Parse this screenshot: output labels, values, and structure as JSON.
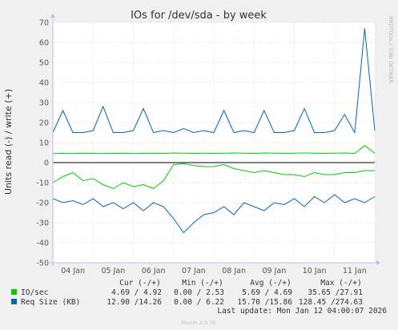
{
  "chart_data": {
    "type": "line",
    "title": "IOs for /dev/sda - by week",
    "ylabel": "Units read (-) / write (+)",
    "ylim": [
      -50,
      70
    ],
    "yticks": [
      70,
      60,
      50,
      40,
      30,
      20,
      10,
      0,
      -10,
      -20,
      -30,
      -40,
      -50
    ],
    "xticks": [
      "04 Jan",
      "05 Jan",
      "06 Jan",
      "07 Jan",
      "08 Jan",
      "09 Jan",
      "10 Jan",
      "11 Jan"
    ],
    "grid": true,
    "x_range_days": [
      0,
      8
    ],
    "series": [
      {
        "name": "IO/sec",
        "color": "#00cc00",
        "x": [
          0,
          0.25,
          0.5,
          0.75,
          1,
          1.25,
          1.5,
          1.75,
          2,
          2.25,
          2.5,
          2.75,
          3,
          3.25,
          3.5,
          3.75,
          4,
          4.25,
          4.5,
          4.75,
          5,
          5.25,
          5.5,
          5.75,
          6,
          6.25,
          6.5,
          6.75,
          7,
          7.25,
          7.5,
          7.75,
          8
        ],
        "write": [
          4.5,
          4.6,
          4.5,
          4.7,
          4.6,
          4.5,
          4.6,
          4.7,
          4.5,
          4.6,
          4.7,
          4.6,
          4.8,
          4.7,
          4.6,
          4.7,
          4.6,
          4.7,
          4.8,
          4.7,
          4.6,
          4.8,
          4.7,
          4.6,
          4.7,
          4.8,
          4.7,
          4.6,
          4.7,
          4.8,
          4.6,
          8.5,
          4.7
        ],
        "read": [
          10,
          7,
          5,
          9,
          8,
          11,
          13,
          10,
          12,
          11,
          13,
          9,
          1,
          0.5,
          1.5,
          2,
          2,
          1,
          3,
          4,
          5,
          4,
          5,
          6,
          6,
          7,
          5,
          6,
          6,
          5,
          5,
          4,
          4
        ]
      },
      {
        "name": "Req Size (KB)",
        "color": "#0066b3",
        "x": [
          0,
          0.25,
          0.5,
          0.75,
          1,
          1.25,
          1.5,
          1.75,
          2,
          2.25,
          2.5,
          2.75,
          3,
          3.25,
          3.5,
          3.75,
          4,
          4.25,
          4.5,
          4.75,
          5,
          5.25,
          5.5,
          5.75,
          6,
          6.25,
          6.5,
          6.75,
          7,
          7.25,
          7.5,
          7.75,
          8
        ],
        "write": [
          15,
          26,
          15,
          15,
          16,
          28,
          15,
          15,
          16,
          27,
          15,
          16,
          15,
          17,
          15,
          16,
          15,
          26,
          15,
          16,
          15,
          26,
          15,
          15,
          16,
          27,
          15,
          15,
          16,
          24,
          15,
          67,
          16
        ],
        "read": [
          18,
          20,
          19,
          21,
          18,
          22,
          20,
          23,
          20,
          24,
          20,
          22,
          28,
          35,
          30,
          26,
          25,
          22,
          26,
          20,
          22,
          24,
          20,
          21,
          18,
          22,
          17,
          20,
          16,
          20,
          18,
          20,
          17
        ]
      }
    ],
    "legend": {
      "headers": [
        "Cur (-/+)",
        "Min (-/+)",
        "Avg (-/+)",
        "Max (-/+)"
      ],
      "rows": [
        {
          "name": "IO/sec",
          "color": "#00cc00",
          "values": [
            "4.69 /  4.92",
            "0.00 /  2.53",
            "5.69 /  4.69",
            "35.65 /27.91"
          ]
        },
        {
          "name": "Req Size (KB)",
          "color": "#0066b3",
          "values": [
            "12.90 /14.26",
            "0.00 /  6.22",
            "15.70 /15.86",
            "128.45 /274.63"
          ]
        }
      ]
    },
    "last_update": "Last update: Mon Jan 12 04:00:07 2026",
    "watermark": "RRDTOOL / TOBI OETIKER",
    "footer": "Munin 2.0.76"
  }
}
